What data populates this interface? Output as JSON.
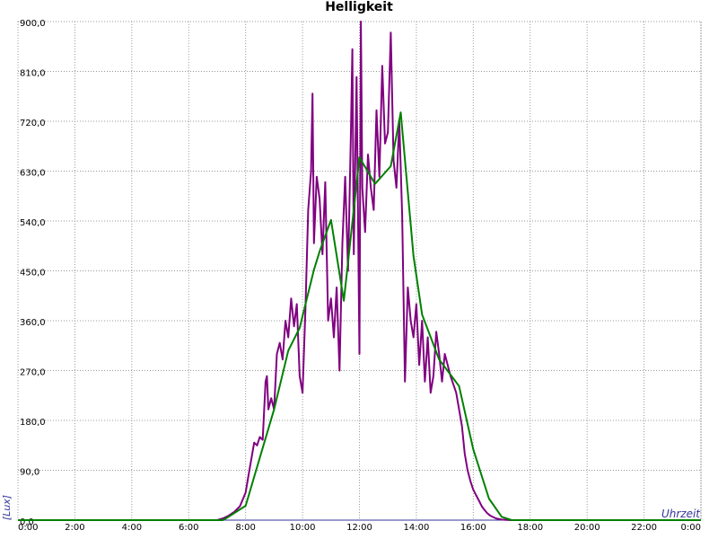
{
  "chart_data": {
    "type": "line",
    "title": "Helligkeit",
    "y_label": "[Lux]",
    "x_label": "Uhrzeit",
    "grid": true,
    "xlim": [
      0,
      24
    ],
    "ylim": [
      0,
      900
    ],
    "xticks": [
      {
        "value": 0,
        "label": "0:00"
      },
      {
        "value": 2,
        "label": "2:00"
      },
      {
        "value": 4,
        "label": "4:00"
      },
      {
        "value": 6,
        "label": "6:00"
      },
      {
        "value": 8,
        "label": "8:00"
      },
      {
        "value": 10,
        "label": "10:00"
      },
      {
        "value": 12,
        "label": "12:00"
      },
      {
        "value": 14,
        "label": "14:00"
      },
      {
        "value": 16,
        "label": "16:00"
      },
      {
        "value": 18,
        "label": "18:00"
      },
      {
        "value": 20,
        "label": "20:00"
      },
      {
        "value": 22,
        "label": "22:00"
      },
      {
        "value": 24,
        "label": "0:00"
      }
    ],
    "yticks": [
      {
        "value": 0,
        "label": "0,0"
      },
      {
        "value": 90,
        "label": "90,0"
      },
      {
        "value": 180,
        "label": "180,0"
      },
      {
        "value": 270,
        "label": "270,0"
      },
      {
        "value": 360,
        "label": "360,0"
      },
      {
        "value": 450,
        "label": "450,0"
      },
      {
        "value": 540,
        "label": "540,0"
      },
      {
        "value": 630,
        "label": "630,0"
      },
      {
        "value": 720,
        "label": "720,0"
      },
      {
        "value": 810,
        "label": "810,0"
      },
      {
        "value": 900,
        "label": "900,0"
      }
    ],
    "series": [
      {
        "color": "#800080",
        "x": [
          0,
          7.0,
          7.2,
          7.4,
          7.6,
          7.8,
          8.0,
          8.1,
          8.2,
          8.3,
          8.4,
          8.5,
          8.6,
          8.7,
          8.75,
          8.8,
          8.9,
          9.0,
          9.1,
          9.2,
          9.3,
          9.4,
          9.5,
          9.6,
          9.7,
          9.8,
          9.9,
          10.0,
          10.1,
          10.2,
          10.3,
          10.35,
          10.4,
          10.5,
          10.6,
          10.7,
          10.8,
          10.9,
          11.0,
          11.1,
          11.2,
          11.3,
          11.4,
          11.5,
          11.6,
          11.7,
          11.75,
          11.8,
          11.9,
          12.0,
          12.05,
          12.1,
          12.2,
          12.3,
          12.4,
          12.5,
          12.6,
          12.7,
          12.8,
          12.9,
          13.0,
          13.1,
          13.2,
          13.3,
          13.4,
          13.5,
          13.6,
          13.7,
          13.8,
          13.9,
          14.0,
          14.1,
          14.2,
          14.3,
          14.4,
          14.5,
          14.6,
          14.7,
          14.8,
          14.9,
          15.0,
          15.2,
          15.4,
          15.5,
          15.6,
          15.7,
          15.8,
          15.9,
          16.0,
          16.1,
          16.2,
          16.3,
          16.4,
          16.5,
          16.6,
          16.8,
          17.0,
          17.3,
          24
        ],
        "values": [
          0,
          0,
          3,
          8,
          15,
          25,
          50,
          80,
          110,
          140,
          135,
          150,
          145,
          250,
          260,
          200,
          220,
          200,
          300,
          320,
          290,
          360,
          330,
          400,
          350,
          390,
          260,
          230,
          380,
          560,
          630,
          770,
          500,
          620,
          580,
          480,
          610,
          360,
          400,
          330,
          420,
          270,
          500,
          620,
          450,
          700,
          850,
          480,
          800,
          300,
          900,
          600,
          520,
          660,
          600,
          560,
          740,
          620,
          820,
          680,
          700,
          880,
          650,
          600,
          720,
          550,
          250,
          420,
          360,
          330,
          390,
          280,
          360,
          250,
          330,
          230,
          260,
          340,
          300,
          250,
          300,
          260,
          230,
          200,
          170,
          120,
          90,
          70,
          55,
          45,
          35,
          25,
          18,
          12,
          8,
          3,
          1,
          0,
          0
        ]
      },
      {
        "color": "#008000",
        "x": [
          0,
          7.2,
          7.4,
          8.0,
          9.0,
          9.5,
          9.9,
          10.4,
          10.6,
          11.0,
          11.45,
          12.0,
          12.55,
          13.1,
          13.45,
          13.9,
          14.2,
          14.8,
          15.5,
          16.0,
          16.55,
          17.0,
          17.35,
          24
        ],
        "values": [
          0,
          0,
          6,
          26,
          200,
          306,
          347,
          452,
          485,
          542,
          396,
          655,
          607,
          639,
          736,
          477,
          371,
          290,
          242,
          128,
          39,
          6,
          0,
          0
        ]
      }
    ]
  }
}
